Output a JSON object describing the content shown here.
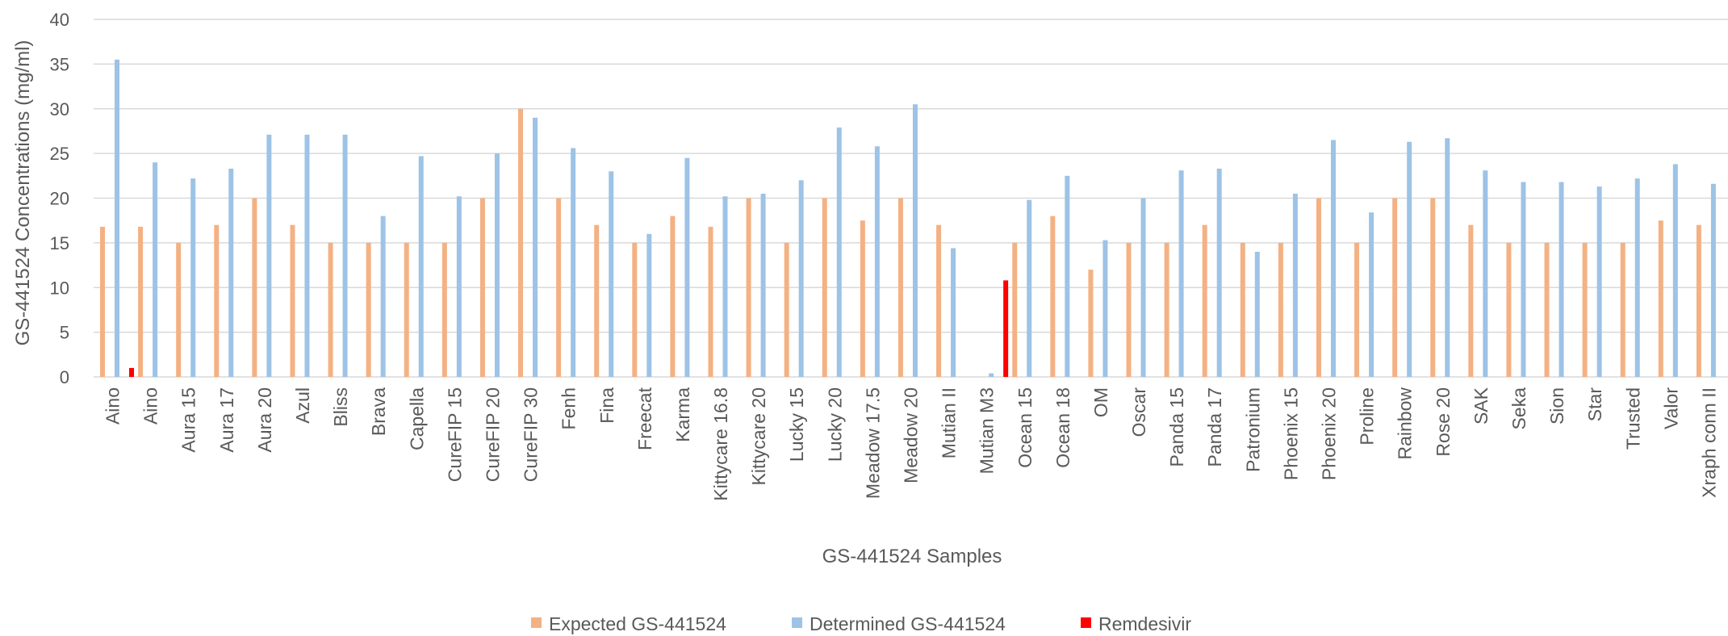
{
  "chart_data": {
    "type": "bar",
    "title": "",
    "xlabel": "GS-441524 Samples",
    "ylabel": "GS-441524 Concentrations (mg/ml)",
    "ylim": [
      0,
      40
    ],
    "yticks": [
      0,
      5,
      10,
      15,
      20,
      25,
      30,
      35,
      40
    ],
    "grid": true,
    "legend_position": "bottom",
    "categories": [
      "Aino",
      "Aino",
      "Aura 15",
      "Aura 17",
      "Aura 20",
      "Azul",
      "Bliss",
      "Brava",
      "Capella",
      "CureFIP 15",
      "CureFIP 20",
      "CureFIP 30",
      "Fenh",
      "Fina",
      "Freecat",
      "Karma",
      "Kittycare 16.8",
      "Kittycare 20",
      "Lucky 15",
      "Lucky 20",
      "Meadow 17.5",
      "Meadow 20",
      "Mutian II",
      "Mutian M3",
      "Ocean 15",
      "Ocean 18",
      "OM",
      "Oscar",
      "Panda 15",
      "Panda 17",
      "Patronium",
      "Phoenix 15",
      "Phoenix 20",
      "Proline",
      "Rainbow",
      "Rose 20",
      "SAK",
      "Seka",
      "Sion",
      "Star",
      "Trusted",
      "Valor",
      "Xraph conn II"
    ],
    "series": [
      {
        "name": "Expected GS-441524",
        "color": "#F4B183",
        "values": [
          16.8,
          16.8,
          15,
          17,
          20,
          17,
          15,
          15,
          15,
          15,
          20,
          30,
          20,
          17,
          15,
          18,
          16.8,
          20,
          15,
          20,
          17.5,
          20,
          17,
          0,
          15,
          18,
          12,
          15,
          15,
          17,
          15,
          15,
          20,
          15,
          20,
          20,
          17,
          15,
          15,
          15,
          15,
          17.5,
          17
        ]
      },
      {
        "name": "Determined GS-441524",
        "color": "#9DC3E6",
        "values": [
          35.5,
          24,
          22.2,
          23.3,
          27.1,
          27.1,
          27.1,
          18,
          24.7,
          20.2,
          25,
          29,
          25.6,
          23,
          16,
          24.5,
          20.2,
          20.5,
          22,
          27.9,
          25.8,
          30.5,
          14.4,
          0.4,
          19.8,
          22.5,
          15.3,
          20,
          23.1,
          23.3,
          14,
          20.5,
          26.5,
          18.4,
          26.3,
          26.7,
          23.1,
          21.8,
          21.8,
          21.3,
          22.2,
          23.8,
          21.6
        ]
      },
      {
        "name": "Remdesivir",
        "color": "#FF0000",
        "values": [
          1,
          0,
          0,
          0,
          0,
          0,
          0,
          0,
          0,
          0,
          0,
          0,
          0,
          0,
          0,
          0,
          0,
          0,
          0,
          0,
          0,
          0,
          0,
          10.8,
          0,
          0,
          0,
          0,
          0,
          0,
          0,
          0,
          0,
          0,
          0,
          0,
          0,
          0,
          0,
          0,
          0,
          0,
          0
        ]
      }
    ]
  },
  "colors": {
    "gridline": "#D9D9D9",
    "text": "#595959"
  }
}
